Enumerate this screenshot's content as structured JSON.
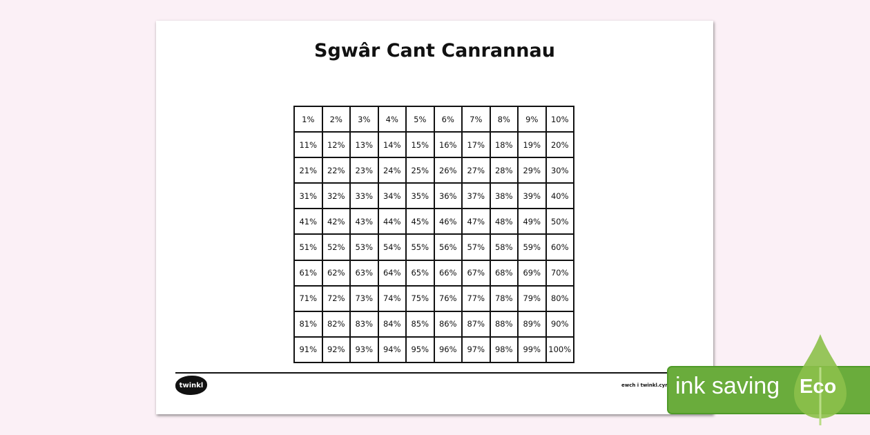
{
  "title": "Sgwâr Cant Canrannau",
  "cells": [
    "1%",
    "2%",
    "3%",
    "4%",
    "5%",
    "6%",
    "7%",
    "8%",
    "9%",
    "10%",
    "11%",
    "12%",
    "13%",
    "14%",
    "15%",
    "16%",
    "17%",
    "18%",
    "19%",
    "20%",
    "21%",
    "22%",
    "23%",
    "24%",
    "25%",
    "26%",
    "27%",
    "28%",
    "29%",
    "30%",
    "31%",
    "32%",
    "33%",
    "34%",
    "35%",
    "36%",
    "37%",
    "38%",
    "39%",
    "40%",
    "41%",
    "42%",
    "43%",
    "44%",
    "45%",
    "46%",
    "47%",
    "48%",
    "49%",
    "50%",
    "51%",
    "52%",
    "53%",
    "54%",
    "55%",
    "56%",
    "57%",
    "58%",
    "59%",
    "60%",
    "61%",
    "62%",
    "63%",
    "64%",
    "65%",
    "66%",
    "67%",
    "68%",
    "69%",
    "70%",
    "71%",
    "72%",
    "73%",
    "74%",
    "75%",
    "76%",
    "77%",
    "78%",
    "79%",
    "80%",
    "81%",
    "82%",
    "83%",
    "84%",
    "85%",
    "86%",
    "87%",
    "88%",
    "89%",
    "90%",
    "91%",
    "92%",
    "93%",
    "94%",
    "95%",
    "96%",
    "97%",
    "98%",
    "99%",
    "100%"
  ],
  "footer": {
    "logo": "twinkl",
    "link": "ewch i twinkl.cymru"
  },
  "badge": {
    "text": "ink saving",
    "eco": "Eco",
    "color": "#6aac3c"
  }
}
